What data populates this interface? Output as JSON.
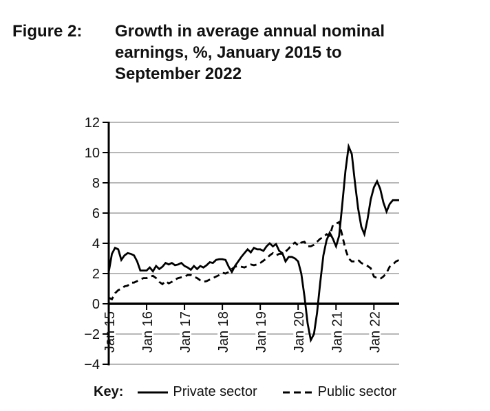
{
  "figure": {
    "label": "Figure 2:",
    "title": "Growth in average annual nominal earnings, %, January 2015 to September 2022",
    "title_lines": [
      "Growth in average annual nominal",
      "earnings, %, January 2015 to",
      "September 2022"
    ]
  },
  "key": {
    "label": "Key:",
    "entries": [
      {
        "name": "Private sector",
        "style": "solid"
      },
      {
        "name": "Public sector",
        "style": "dashed"
      }
    ]
  },
  "colors": {
    "line": "#000000",
    "grid": "#8c8c8c",
    "text": "#111111",
    "background": "#ffffff"
  },
  "chart_data": {
    "type": "line",
    "title": "Growth in average annual nominal earnings, %, January 2015 to September 2022",
    "xlabel": "",
    "ylabel": "%",
    "x_start": "Jan 2015",
    "x_end": "Sep 2022",
    "frequency": "monthly",
    "grid": true,
    "legend_position": "bottom",
    "ylim": [
      -4,
      12
    ],
    "y_ticks": [
      12,
      10,
      8,
      6,
      4,
      2,
      0,
      -2,
      -4
    ],
    "y_tick_labels": [
      "12",
      "10",
      "8",
      "6",
      "4",
      "2",
      "0",
      "−2",
      "−4"
    ],
    "x_tick_labels": [
      "Jan 15",
      "Jan 16",
      "Jan 17",
      "Jan 18",
      "Jan 19",
      "Jan 20",
      "Jan 21",
      "Jan 22"
    ],
    "x_tick_month_index": [
      0,
      12,
      24,
      36,
      48,
      60,
      72,
      84
    ],
    "series": [
      {
        "name": "Private sector",
        "dash": "solid",
        "values": [
          2.1,
          3.3,
          3.7,
          3.6,
          2.9,
          3.2,
          3.35,
          3.3,
          3.2,
          2.8,
          2.2,
          2.2,
          2.2,
          2.4,
          2.15,
          2.5,
          2.3,
          2.45,
          2.7,
          2.6,
          2.7,
          2.55,
          2.6,
          2.7,
          2.5,
          2.4,
          2.25,
          2.5,
          2.3,
          2.5,
          2.4,
          2.55,
          2.75,
          2.7,
          2.9,
          2.95,
          2.95,
          2.9,
          2.45,
          2.1,
          2.5,
          2.8,
          3.1,
          3.35,
          3.6,
          3.4,
          3.7,
          3.6,
          3.6,
          3.5,
          3.8,
          4.0,
          3.8,
          3.95,
          3.5,
          3.35,
          2.8,
          3.1,
          3.1,
          3.0,
          2.8,
          2.0,
          0.5,
          -1.3,
          -2.4,
          -2.0,
          -0.6,
          1.4,
          3.2,
          4.2,
          4.7,
          4.3,
          3.8,
          4.5,
          6.6,
          8.8,
          10.4,
          9.9,
          8.0,
          6.3,
          5.1,
          4.6,
          5.6,
          6.9,
          7.7,
          8.1,
          7.6,
          6.7,
          6.1,
          6.6,
          6.85,
          6.85,
          6.85
        ]
      },
      {
        "name": "Public sector",
        "dash": "dashed",
        "values": [
          0.4,
          0.3,
          0.7,
          0.9,
          1.0,
          1.15,
          1.2,
          1.4,
          1.4,
          1.5,
          1.6,
          1.7,
          1.7,
          1.8,
          1.85,
          1.7,
          1.45,
          1.3,
          1.5,
          1.35,
          1.45,
          1.6,
          1.7,
          1.75,
          1.8,
          1.9,
          1.9,
          1.8,
          1.7,
          1.55,
          1.45,
          1.5,
          1.6,
          1.7,
          1.8,
          1.9,
          2.05,
          2.0,
          2.1,
          2.3,
          2.45,
          2.5,
          2.45,
          2.4,
          2.5,
          2.6,
          2.55,
          2.6,
          2.7,
          2.85,
          3.0,
          3.2,
          3.35,
          3.2,
          3.3,
          3.3,
          3.45,
          3.65,
          3.9,
          4.05,
          3.85,
          4.05,
          4.1,
          3.8,
          3.8,
          3.9,
          4.1,
          4.3,
          4.4,
          4.6,
          4.5,
          5.2,
          5.3,
          5.4,
          4.5,
          3.6,
          3.0,
          2.8,
          2.8,
          2.9,
          2.7,
          2.6,
          2.5,
          2.35,
          1.8,
          1.7,
          1.65,
          1.8,
          2.05,
          2.45,
          2.6,
          2.8,
          2.9
        ]
      }
    ]
  }
}
